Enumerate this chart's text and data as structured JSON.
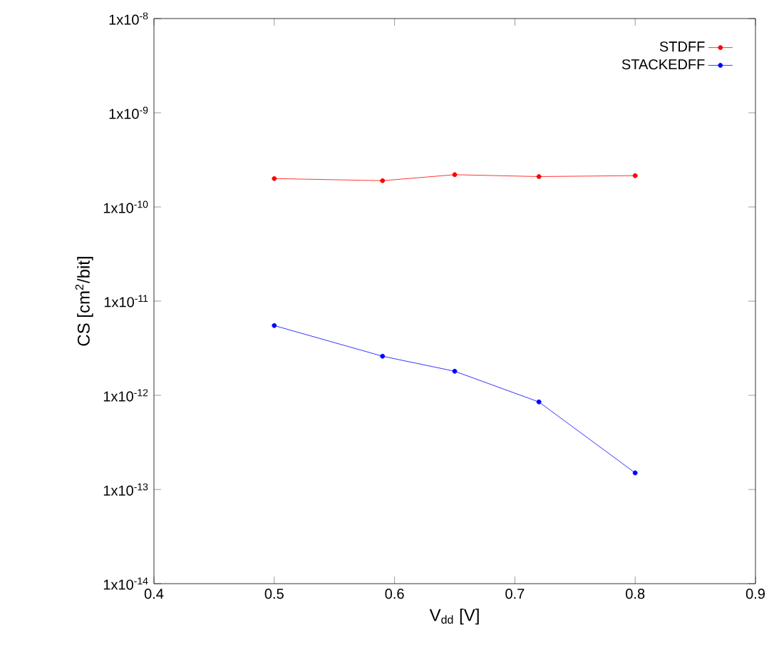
{
  "chart_data": {
    "type": "line",
    "xlabel": "V$_{dd}$ [V]",
    "ylabel": "CS [cm$^{2}$/bit]",
    "x": [
      0.5,
      0.59,
      0.65,
      0.72,
      0.8
    ],
    "series": [
      {
        "name": "STDFF",
        "color": "#ff0000",
        "values": [
          2e-10,
          1.9e-10,
          2.2e-10,
          2.1e-10,
          2.15e-10
        ]
      },
      {
        "name": "STACKEDFF",
        "color": "#0000ff",
        "values": [
          5.5e-12,
          2.6e-12,
          1.8e-12,
          8.5e-13,
          1.5e-13
        ]
      }
    ],
    "log": "y",
    "xlim": [
      0.4,
      0.9
    ],
    "ylim": [
      1e-14,
      1e-08
    ],
    "xticks": [
      0.4,
      0.5,
      0.6,
      0.7,
      0.8,
      0.9
    ],
    "yticks": [
      {
        "value": 1e-14,
        "label": "1x10$^{-14}$"
      },
      {
        "value": 1e-13,
        "label": "1x10$^{-13}$"
      },
      {
        "value": 1e-12,
        "label": "1x10$^{-12}$"
      },
      {
        "value": 1e-11,
        "label": "1x10$^{-11}$"
      },
      {
        "value": 1e-10,
        "label": "1x10$^{-10}$"
      },
      {
        "value": 1e-09,
        "label": "1x10$^{-9}$"
      },
      {
        "value": 1e-08,
        "label": "1x10$^{-8}$"
      }
    ],
    "legend": "top right",
    "marker": "circle",
    "line_style": "solid"
  }
}
